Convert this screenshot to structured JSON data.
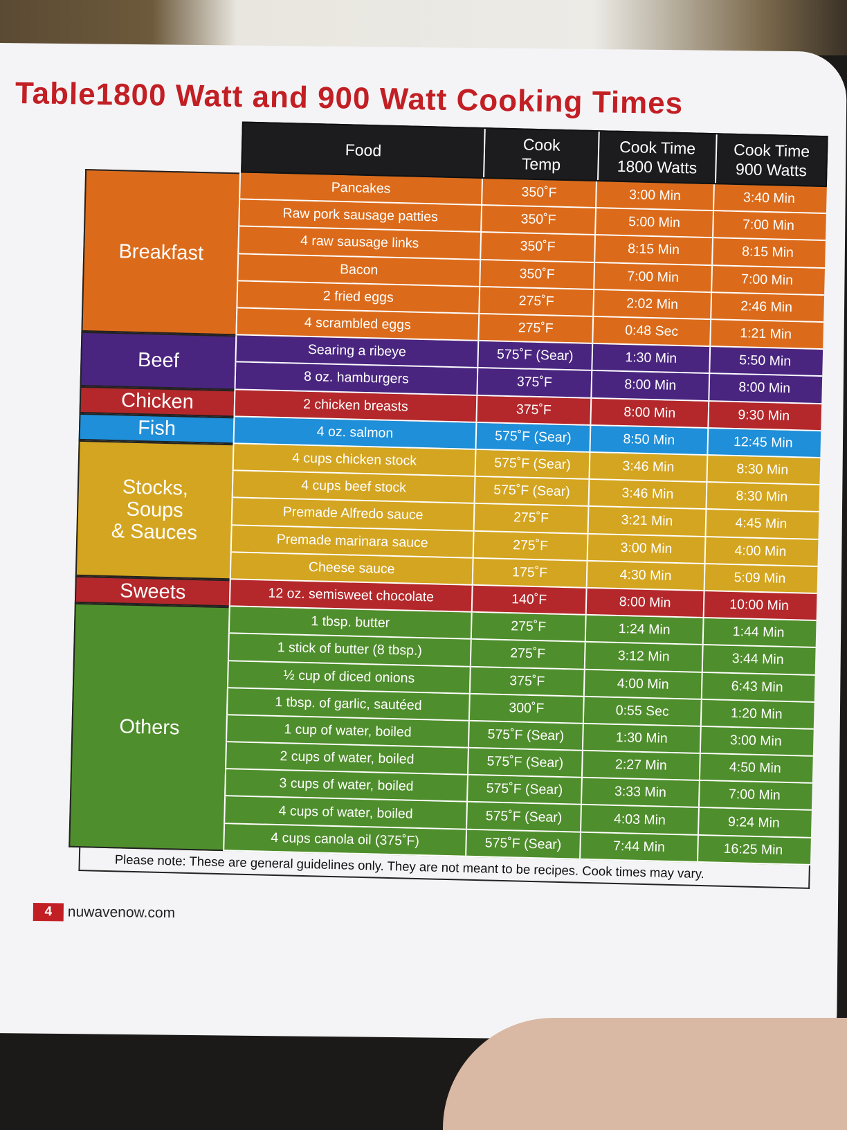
{
  "title": "Table1800 Watt and 900 Watt Cooking Times",
  "colors": {
    "breakfast": "#db6b1b",
    "beef": "#4a2580",
    "chicken": "#b4282b",
    "fish": "#1e8fd8",
    "stocks": "#d4a520",
    "sweets": "#b4282b",
    "others": "#4f8e2c",
    "title": "#c21f24",
    "header": "#1c1c1e"
  },
  "headers": {
    "food": "Food",
    "temp": "Cook\nTemp",
    "time_1800": "Cook Time\n1800 Watts",
    "time_900": "Cook Time\n900 Watts"
  },
  "groups": [
    {
      "category": "Breakfast",
      "color_key": "breakfast",
      "rows": [
        {
          "food": "Pancakes",
          "temp": "350˚F",
          "t1800": "3:00 Min",
          "t900": "3:40 Min"
        },
        {
          "food": "Raw pork sausage patties",
          "temp": "350˚F",
          "t1800": "5:00 Min",
          "t900": "7:00 Min"
        },
        {
          "food": "4 raw sausage links",
          "temp": "350˚F",
          "t1800": "8:15 Min",
          "t900": "8:15 Min"
        },
        {
          "food": "Bacon",
          "temp": "350˚F",
          "t1800": "7:00 Min",
          "t900": "7:00 Min"
        },
        {
          "food": "2 fried eggs",
          "temp": "275˚F",
          "t1800": "2:02 Min",
          "t900": "2:46 Min"
        },
        {
          "food": "4 scrambled eggs",
          "temp": "275˚F",
          "t1800": "0:48 Sec",
          "t900": "1:21 Min"
        }
      ]
    },
    {
      "category": "Beef",
      "color_key": "beef",
      "rows": [
        {
          "food": "Searing a ribeye",
          "temp": "575˚F (Sear)",
          "t1800": "1:30 Min",
          "t900": "5:50 Min"
        },
        {
          "food": "8 oz. hamburgers",
          "temp": "375˚F",
          "t1800": "8:00 Min",
          "t900": "8:00 Min"
        }
      ]
    },
    {
      "category": "Chicken",
      "color_key": "chicken",
      "rows": [
        {
          "food": "2 chicken breasts",
          "temp": "375˚F",
          "t1800": "8:00 Min",
          "t900": "9:30 Min"
        }
      ]
    },
    {
      "category": "Fish",
      "color_key": "fish",
      "rows": [
        {
          "food": "4 oz. salmon",
          "temp": "575˚F (Sear)",
          "t1800": "8:50 Min",
          "t900": "12:45 Min"
        }
      ]
    },
    {
      "category": "Stocks,\nSoups\n& Sauces",
      "color_key": "stocks",
      "rows": [
        {
          "food": "4 cups chicken stock",
          "temp": "575˚F (Sear)",
          "t1800": "3:46 Min",
          "t900": "8:30 Min"
        },
        {
          "food": "4 cups beef stock",
          "temp": "575˚F (Sear)",
          "t1800": "3:46 Min",
          "t900": "8:30 Min"
        },
        {
          "food": "Premade Alfredo sauce",
          "temp": "275˚F",
          "t1800": "3:21 Min",
          "t900": "4:45 Min"
        },
        {
          "food": "Premade marinara sauce",
          "temp": "275˚F",
          "t1800": "3:00 Min",
          "t900": "4:00 Min"
        },
        {
          "food": "Cheese sauce",
          "temp": "175˚F",
          "t1800": "4:30 Min",
          "t900": "5:09 Min"
        }
      ]
    },
    {
      "category": "Sweets",
      "color_key": "sweets",
      "rows": [
        {
          "food": "12 oz. semisweet chocolate",
          "temp": "140˚F",
          "t1800": "8:00 Min",
          "t900": "10:00 Min"
        }
      ]
    },
    {
      "category": "Others",
      "color_key": "others",
      "rows": [
        {
          "food": "1 tbsp. butter",
          "temp": "275˚F",
          "t1800": "1:24 Min",
          "t900": "1:44 Min"
        },
        {
          "food": "1 stick of butter (8 tbsp.)",
          "temp": "275˚F",
          "t1800": "3:12 Min",
          "t900": "3:44 Min"
        },
        {
          "food": "½ cup of diced onions",
          "temp": "375˚F",
          "t1800": "4:00 Min",
          "t900": "6:43 Min"
        },
        {
          "food": "1 tbsp. of garlic, sautéed",
          "temp": "300˚F",
          "t1800": "0:55 Sec",
          "t900": "1:20 Min"
        },
        {
          "food": "1 cup of water, boiled",
          "temp": "575˚F (Sear)",
          "t1800": "1:30 Min",
          "t900": "3:00 Min"
        },
        {
          "food": "2 cups of water, boiled",
          "temp": "575˚F (Sear)",
          "t1800": "2:27 Min",
          "t900": "4:50 Min"
        },
        {
          "food": "3 cups of water, boiled",
          "temp": "575˚F (Sear)",
          "t1800": "3:33 Min",
          "t900": "7:00 Min"
        },
        {
          "food": "4 cups of water, boiled",
          "temp": "575˚F (Sear)",
          "t1800": "4:03 Min",
          "t900": "9:24 Min"
        },
        {
          "food": "4 cups canola oil (375˚F)",
          "temp": "575˚F (Sear)",
          "t1800": "7:44 Min",
          "t900": "16:25 Min"
        }
      ]
    }
  ],
  "note": "Please note: These are general guidelines only.  They are not meant to be recipes. Cook times may vary.",
  "footer": {
    "page_number": "4",
    "site": "nuwavenow.com"
  }
}
